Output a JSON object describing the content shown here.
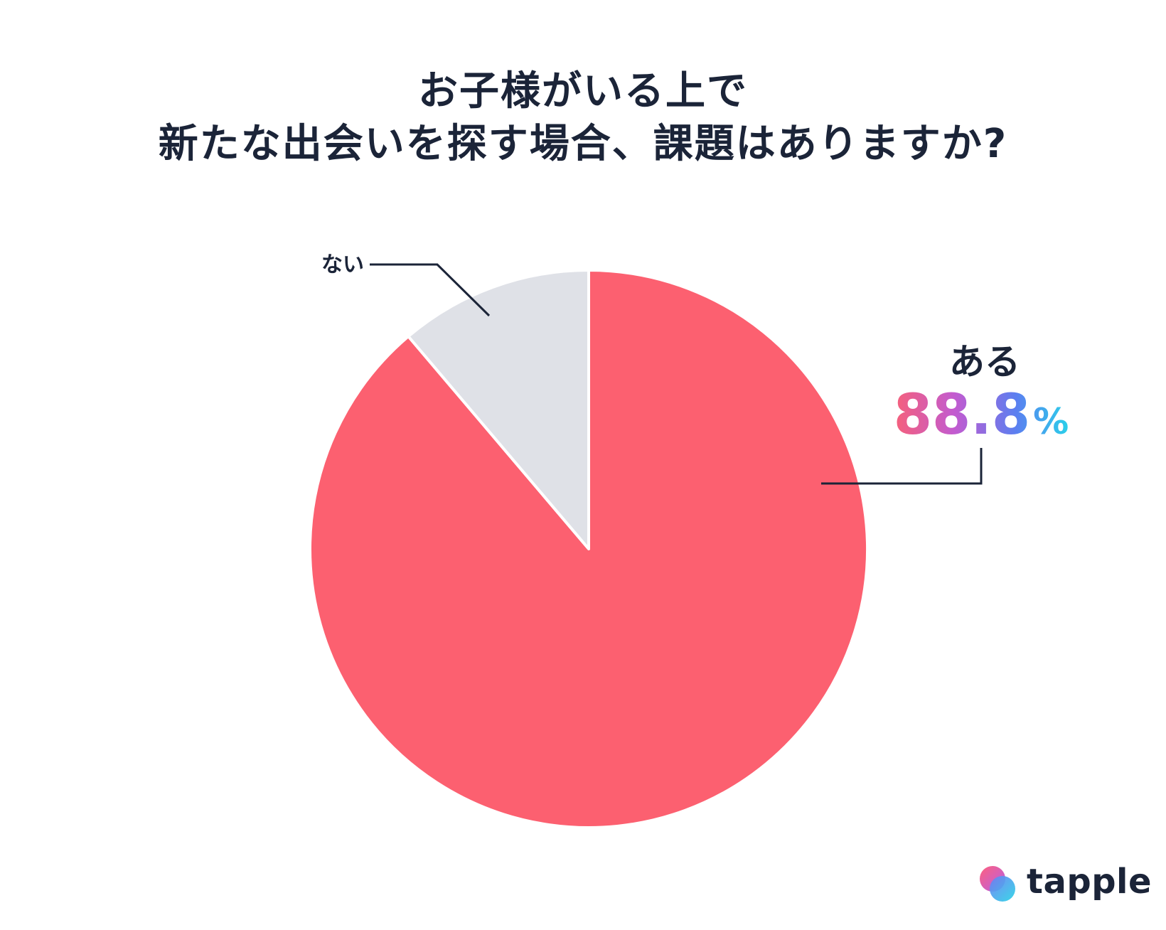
{
  "title": {
    "line1": "お子様がいる上で",
    "line2": "新たな出会いを探す場合、課題はありますか?"
  },
  "chart_data": {
    "type": "pie",
    "slices": [
      {
        "label": "ある",
        "value": 88.8,
        "value_label": "88.8",
        "unit": "%",
        "color": "#fc6070"
      },
      {
        "label": "ない",
        "value": 11.2,
        "color": "#dfe1e7"
      }
    ],
    "start": "12 o'clock",
    "direction": "clockwise"
  },
  "colors": {
    "text": "#1b2438",
    "gradient_pink": "#f6607a",
    "gradient_purple": "#a35ee0",
    "gradient_blue": "#4a86f2",
    "gradient_cyan": "#2ad0ea"
  },
  "logo": {
    "text": "tapple"
  }
}
